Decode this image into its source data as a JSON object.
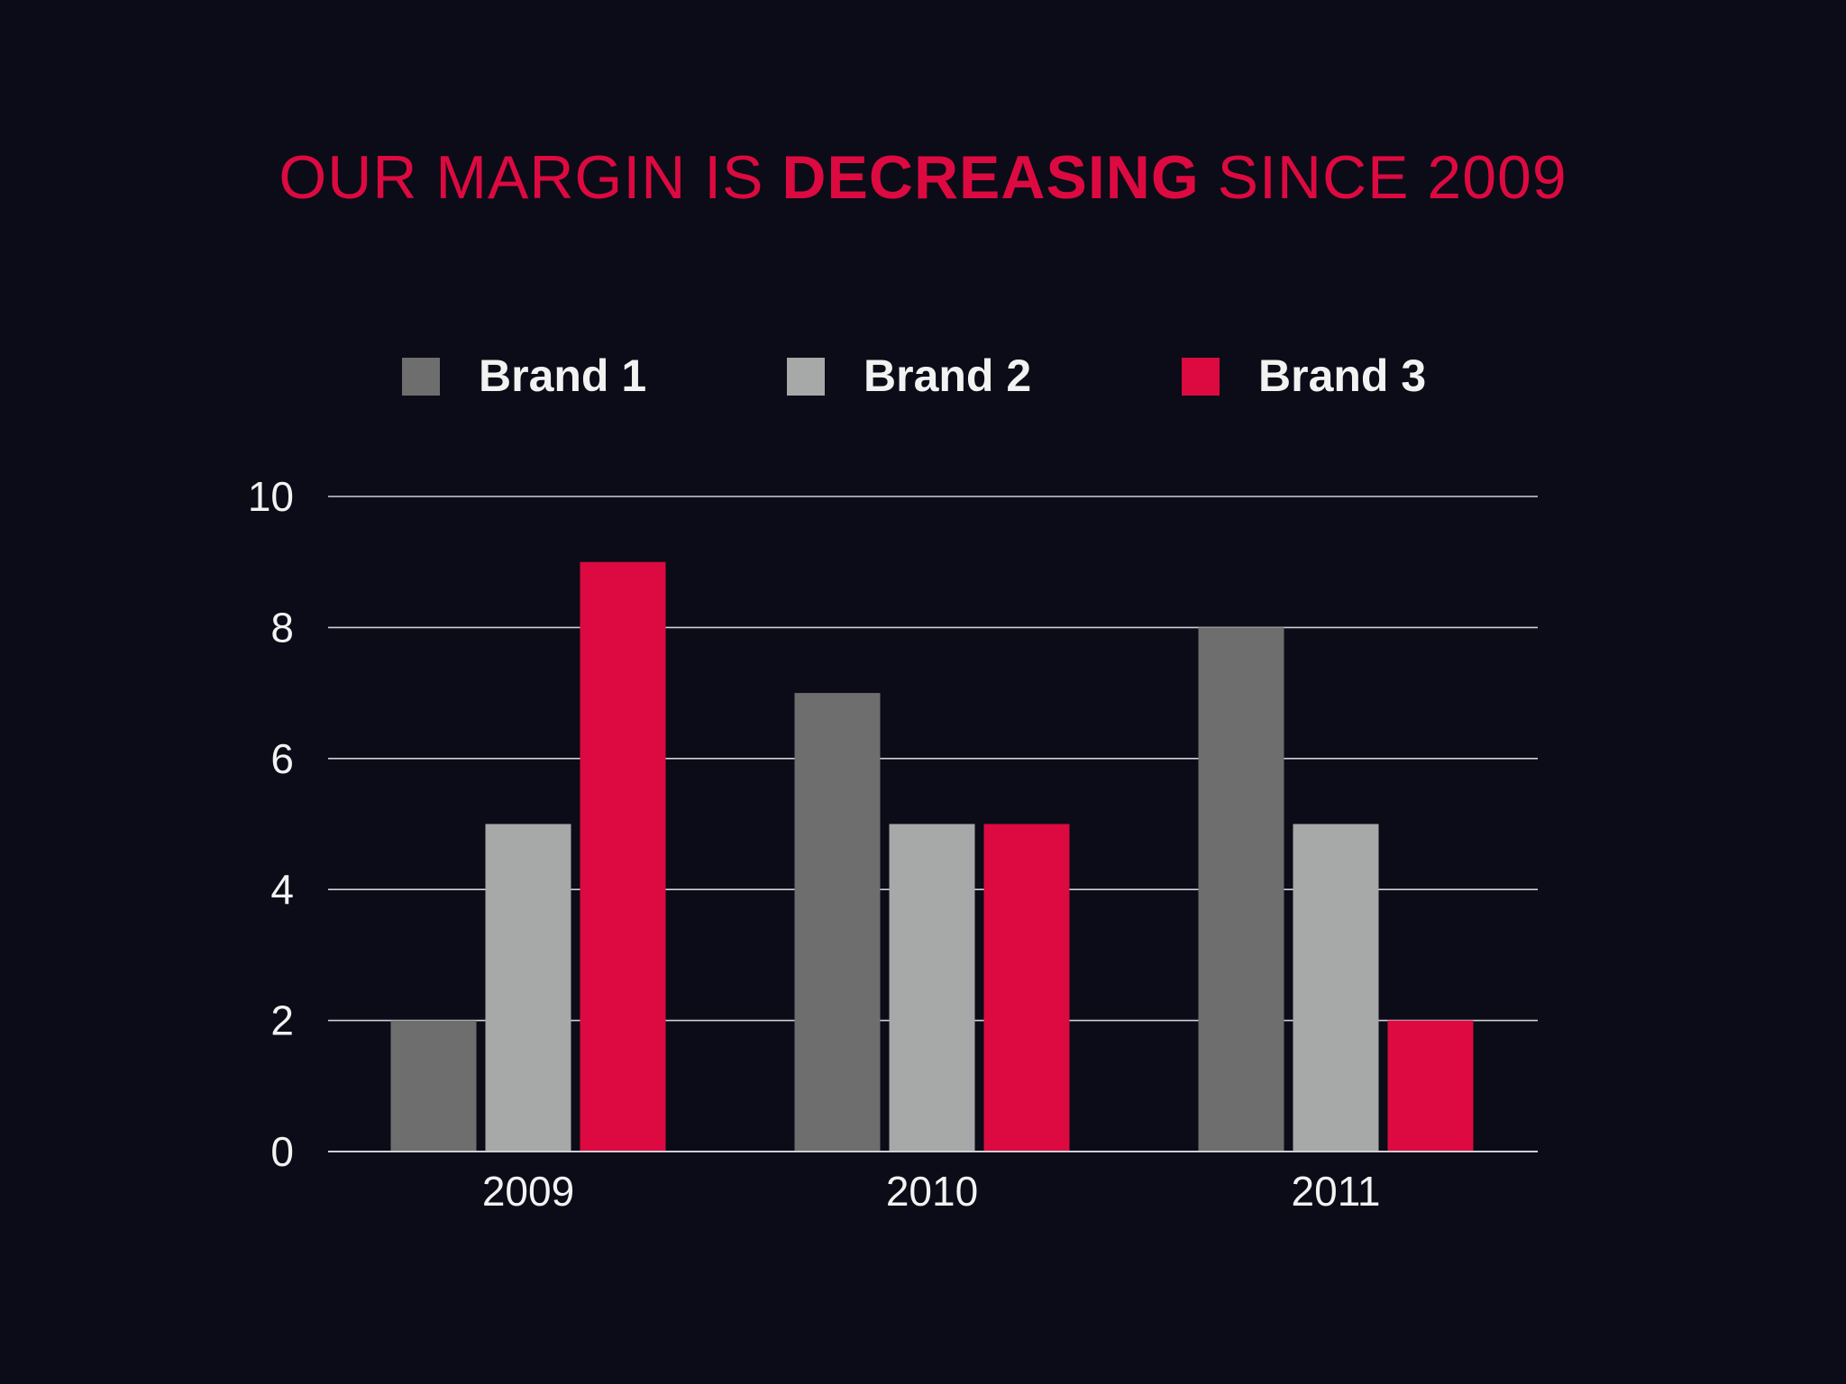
{
  "colors": {
    "background": "#0b0c17",
    "title": "#dc0a40",
    "grid": "#cfcfd4",
    "text": "#f2f2f2"
  },
  "title": {
    "part1": "OUR MARGIN IS ",
    "part2": "DECREASING",
    "part3": " SINCE 2009"
  },
  "chart_data": {
    "type": "bar",
    "title": "OUR MARGIN IS DECREASING SINCE 2009",
    "categories": [
      "2009",
      "2010",
      "2011"
    ],
    "series": [
      {
        "name": "Brand 1",
        "color": "#6d6e6d",
        "values": [
          2,
          7,
          8
        ]
      },
      {
        "name": "Brand 2",
        "color": "#a7a8a8",
        "values": [
          5,
          5,
          5
        ]
      },
      {
        "name": "Brand 3",
        "color": "#dc0a40",
        "values": [
          9,
          5,
          2
        ]
      }
    ],
    "ylim": [
      0,
      10
    ],
    "yticks": [
      "0",
      "2",
      "4",
      "6",
      "8",
      "10"
    ],
    "grid": true,
    "legend": "top"
  }
}
